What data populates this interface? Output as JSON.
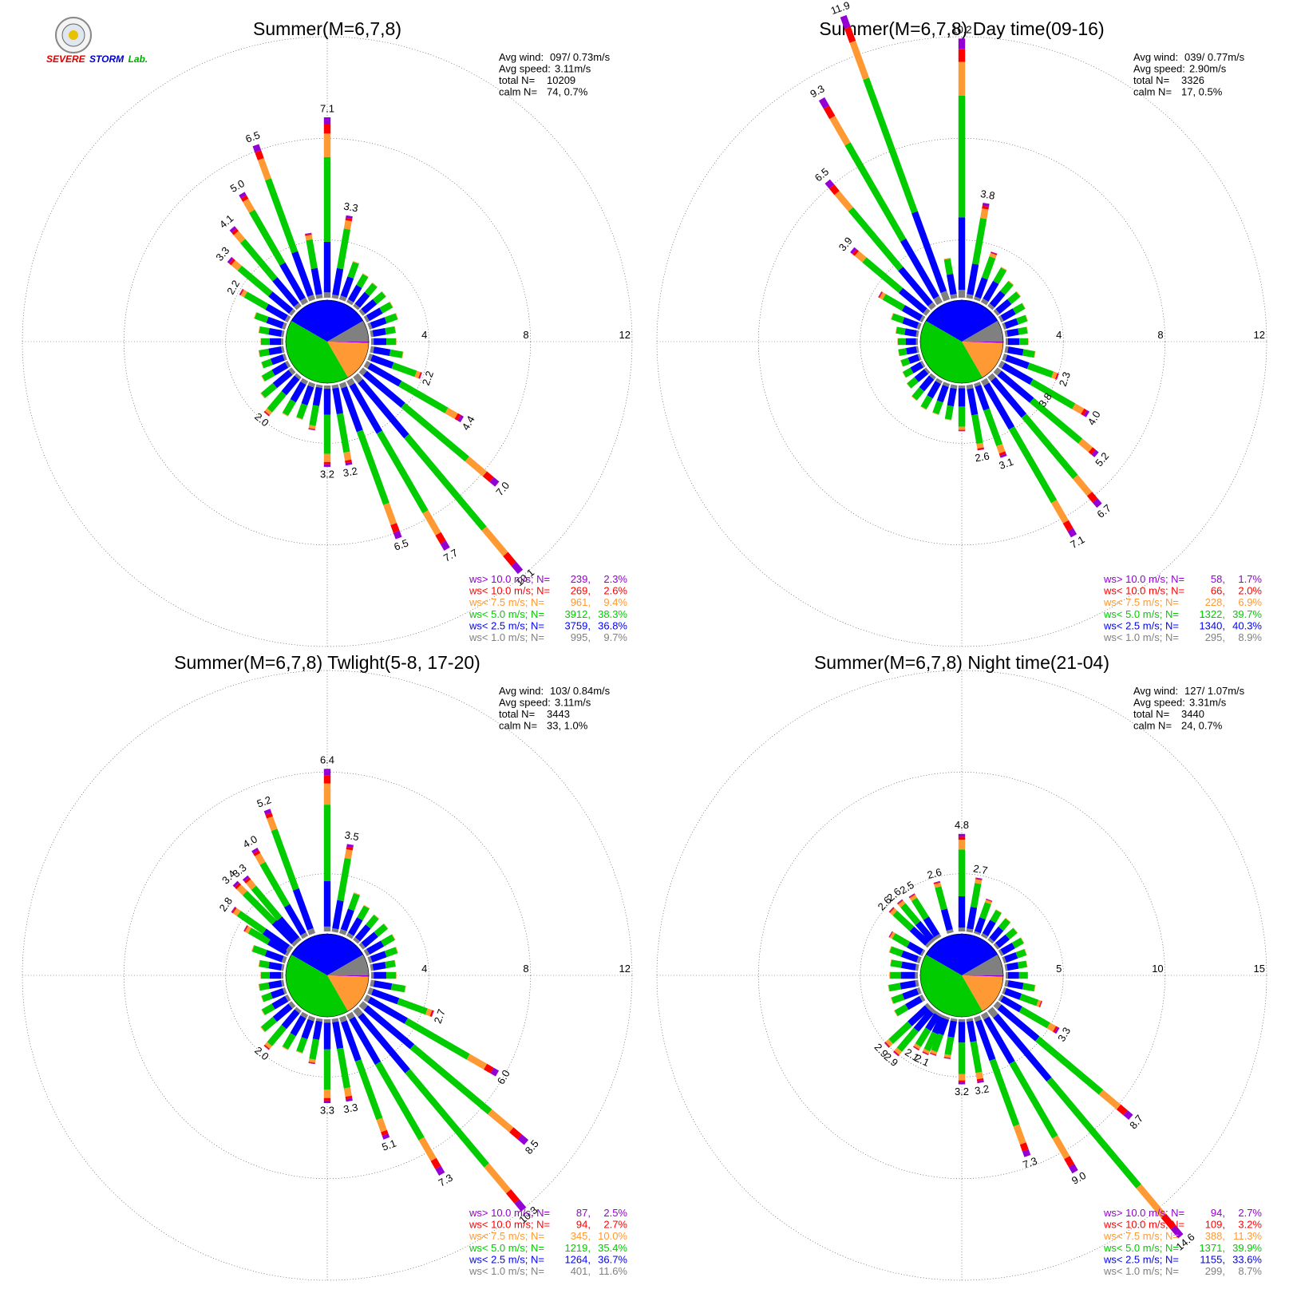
{
  "colors": {
    "gt10": "#9400d3",
    "lt10": "#ff0000",
    "lt7_5": "#ff9933",
    "lt5": "#00cc00",
    "lt2_5": "#0000ff",
    "lt1": "#808080"
  },
  "logo": {
    "icon": "severe-storm-lab-seal-icon",
    "line1": "SEVERE",
    "line2": "STORM",
    "line3": "Lab."
  },
  "chart_data": [
    {
      "type": "wind-rose",
      "title": "Summer(M=6,7,8)",
      "stats": {
        "avg_wind_label": "Avg wind:",
        "avg_wind": "097/ 0.73m/s",
        "avg_speed_label": "Avg speed:",
        "avg_speed": "3.11m/s",
        "total_label": "total N=",
        "total": "10209",
        "calm_label": "calm N=",
        "calm": "74,   0.7%"
      },
      "rmax": 12,
      "rings": [
        4,
        8,
        12
      ],
      "ring_labels": [
        "4",
        "8",
        "12"
      ],
      "bar_labels": [
        {
          "dir": 0,
          "text": "7.1"
        },
        {
          "dir": 10,
          "text": "3.3"
        },
        {
          "dir": 110,
          "text": "2.2"
        },
        {
          "dir": 120,
          "text": "4.4"
        },
        {
          "dir": 130,
          "text": "7.0"
        },
        {
          "dir": 140,
          "text": "10.1"
        },
        {
          "dir": 150,
          "text": "7.7"
        },
        {
          "dir": 160,
          "text": "6.5"
        },
        {
          "dir": 170,
          "text": "3.2"
        },
        {
          "dir": 180,
          "text": "3.2"
        },
        {
          "dir": 220,
          "text": "2.0"
        },
        {
          "dir": 300,
          "text": "2.2"
        },
        {
          "dir": 310,
          "text": "3.3"
        },
        {
          "dir": 320,
          "text": "4.1"
        },
        {
          "dir": 330,
          "text": "5.0"
        },
        {
          "dir": 340,
          "text": "6.5"
        }
      ],
      "center_pie": [
        34,
        37,
        38,
        8,
        0.7
      ],
      "legend": [
        {
          "cls": "gt10",
          "label": "ws> 10.0 m/s; N=",
          "n": "239,",
          "pct": "2.3%"
        },
        {
          "cls": "lt10",
          "label": "ws< 10.0 m/s; N=",
          "n": "269,",
          "pct": "2.6%"
        },
        {
          "cls": "lt7_5",
          "label": "ws<  7.5 m/s; N=",
          "n": "961,",
          "pct": "9.4%"
        },
        {
          "cls": "lt5",
          "label": "ws<  5.0 m/s; N=",
          "n": "3912,",
          "pct": "38.3%"
        },
        {
          "cls": "lt2_5",
          "label": "ws<  2.5 m/s; N=",
          "n": "3759,",
          "pct": "36.8%"
        },
        {
          "cls": "lt1",
          "label": "ws<  1.0 m/s; N=",
          "n": "995,",
          "pct": "9.7%"
        }
      ],
      "bars": [
        {
          "dir": 0,
          "total": 7.1
        },
        {
          "dir": 10,
          "total": 3.3
        },
        {
          "dir": 20,
          "total": 1.6
        },
        {
          "dir": 30,
          "total": 1.3
        },
        {
          "dir": 40,
          "total": 1.2
        },
        {
          "dir": 50,
          "total": 1.2
        },
        {
          "dir": 60,
          "total": 1.2
        },
        {
          "dir": 70,
          "total": 1.2
        },
        {
          "dir": 80,
          "total": 1.0
        },
        {
          "dir": 90,
          "total": 1.0
        },
        {
          "dir": 100,
          "total": 1.3
        },
        {
          "dir": 110,
          "total": 2.2
        },
        {
          "dir": 120,
          "total": 4.4
        },
        {
          "dir": 130,
          "total": 7.0
        },
        {
          "dir": 140,
          "total": 10.1
        },
        {
          "dir": 150,
          "total": 7.7
        },
        {
          "dir": 160,
          "total": 6.5
        },
        {
          "dir": 170,
          "total": 3.2
        },
        {
          "dir": 180,
          "total": 3.2
        },
        {
          "dir": 190,
          "total": 1.8
        },
        {
          "dir": 200,
          "total": 1.5
        },
        {
          "dir": 210,
          "total": 1.6
        },
        {
          "dir": 220,
          "total": 2.0
        },
        {
          "dir": 230,
          "total": 1.6
        },
        {
          "dir": 240,
          "total": 1.2
        },
        {
          "dir": 250,
          "total": 1.0
        },
        {
          "dir": 260,
          "total": 1.0
        },
        {
          "dir": 270,
          "total": 0.9
        },
        {
          "dir": 280,
          "total": 1.0
        },
        {
          "dir": 290,
          "total": 1.3
        },
        {
          "dir": 300,
          "total": 2.2
        },
        {
          "dir": 310,
          "total": 3.3
        },
        {
          "dir": 320,
          "total": 4.1
        },
        {
          "dir": 330,
          "total": 5.0
        },
        {
          "dir": 340,
          "total": 6.5
        },
        {
          "dir": 350,
          "total": 2.6
        }
      ]
    },
    {
      "type": "wind-rose",
      "title": "Summer(M=6,7,8) Day time(09-16)",
      "stats": {
        "avg_wind_label": "Avg wind:",
        "avg_wind": "039/ 0.77m/s",
        "avg_speed_label": "Avg speed:",
        "avg_speed": "2.90m/s",
        "total_label": "total N=",
        "total": "3326",
        "calm_label": "calm N=",
        "calm": "17,   0.5%"
      },
      "rmax": 12,
      "rings": [
        4,
        8,
        12
      ],
      "ring_labels": [
        "4",
        "8",
        "12"
      ],
      "bar_labels": [
        {
          "dir": 340,
          "text": "11.9"
        },
        {
          "dir": 0,
          "text": "10.2"
        },
        {
          "dir": 330,
          "text": "9.3"
        },
        {
          "dir": 320,
          "text": "6.5"
        },
        {
          "dir": 310,
          "text": "3.9"
        },
        {
          "dir": 10,
          "text": "3.8"
        },
        {
          "dir": 110,
          "text": "2.3"
        },
        {
          "dir": 120,
          "text": "4.0"
        },
        {
          "dir": 125,
          "text": "3.8"
        },
        {
          "dir": 130,
          "text": "5.2"
        },
        {
          "dir": 140,
          "text": "6.7"
        },
        {
          "dir": 150,
          "text": "7.1"
        },
        {
          "dir": 160,
          "text": "3.1"
        },
        {
          "dir": 170,
          "text": "2.6"
        }
      ],
      "center_pie": [
        38,
        41,
        40,
        7,
        0.5
      ],
      "legend": [
        {
          "cls": "gt10",
          "label": "ws> 10.0 m/s; N=",
          "n": "58,",
          "pct": "1.7%"
        },
        {
          "cls": "lt10",
          "label": "ws< 10.0 m/s; N=",
          "n": "66,",
          "pct": "2.0%"
        },
        {
          "cls": "lt7_5",
          "label": "ws<  7.5 m/s; N=",
          "n": "228,",
          "pct": "6.9%"
        },
        {
          "cls": "lt5",
          "label": "ws<  5.0 m/s; N=",
          "n": "1322,",
          "pct": "39.7%"
        },
        {
          "cls": "lt2_5",
          "label": "ws<  2.5 m/s; N=",
          "n": "1340,",
          "pct": "40.3%"
        },
        {
          "cls": "lt1",
          "label": "ws<  1.0 m/s; N=",
          "n": "295,",
          "pct": "8.9%"
        }
      ],
      "bars": [
        {
          "dir": 0,
          "total": 10.2
        },
        {
          "dir": 10,
          "total": 3.8
        },
        {
          "dir": 20,
          "total": 2.0
        },
        {
          "dir": 30,
          "total": 1.6
        },
        {
          "dir": 40,
          "total": 1.3
        },
        {
          "dir": 50,
          "total": 1.2
        },
        {
          "dir": 60,
          "total": 1.1
        },
        {
          "dir": 70,
          "total": 1.0
        },
        {
          "dir": 80,
          "total": 0.9
        },
        {
          "dir": 90,
          "total": 0.9
        },
        {
          "dir": 100,
          "total": 1.2
        },
        {
          "dir": 110,
          "total": 2.3
        },
        {
          "dir": 120,
          "total": 4.0
        },
        {
          "dir": 130,
          "total": 5.2
        },
        {
          "dir": 140,
          "total": 6.7
        },
        {
          "dir": 150,
          "total": 7.1
        },
        {
          "dir": 160,
          "total": 3.1
        },
        {
          "dir": 170,
          "total": 2.6
        },
        {
          "dir": 180,
          "total": 1.8
        },
        {
          "dir": 190,
          "total": 1.4
        },
        {
          "dir": 200,
          "total": 1.3
        },
        {
          "dir": 210,
          "total": 1.3
        },
        {
          "dir": 220,
          "total": 1.2
        },
        {
          "dir": 230,
          "total": 1.0
        },
        {
          "dir": 240,
          "total": 0.9
        },
        {
          "dir": 250,
          "total": 0.8
        },
        {
          "dir": 260,
          "total": 0.8
        },
        {
          "dir": 270,
          "total": 0.8
        },
        {
          "dir": 280,
          "total": 0.9
        },
        {
          "dir": 290,
          "total": 1.2
        },
        {
          "dir": 300,
          "total": 2.0
        },
        {
          "dir": 310,
          "total": 3.9
        },
        {
          "dir": 320,
          "total": 6.5
        },
        {
          "dir": 330,
          "total": 9.3
        },
        {
          "dir": 340,
          "total": 11.9
        },
        {
          "dir": 350,
          "total": 1.6
        }
      ]
    },
    {
      "type": "wind-rose",
      "title": "Summer(M=6,7,8) Twlight(5-8, 17-20)",
      "stats": {
        "avg_wind_label": "Avg wind:",
        "avg_wind": "103/ 0.84m/s",
        "avg_speed_label": "Avg speed:",
        "avg_speed": "3.11m/s",
        "total_label": "total N=",
        "total": "3443",
        "calm_label": "calm N=",
        "calm": "33,   1.0%"
      },
      "rmax": 12,
      "rings": [
        4,
        8,
        12
      ],
      "ring_labels": [
        "4",
        "8",
        "12"
      ],
      "bar_labels": [
        {
          "dir": 0,
          "text": "6.4"
        },
        {
          "dir": 10,
          "text": "3.5"
        },
        {
          "dir": 340,
          "text": "5.2"
        },
        {
          "dir": 330,
          "text": "4.0"
        },
        {
          "dir": 320,
          "text": "3.3"
        },
        {
          "dir": 315,
          "text": "3.4"
        },
        {
          "dir": 305,
          "text": "2.8"
        },
        {
          "dir": 110,
          "text": "2.7"
        },
        {
          "dir": 120,
          "text": "6.0"
        },
        {
          "dir": 130,
          "text": "8.5"
        },
        {
          "dir": 140,
          "text": "10.3"
        },
        {
          "dir": 150,
          "text": "7.3"
        },
        {
          "dir": 160,
          "text": "5.1"
        },
        {
          "dir": 170,
          "text": "3.3"
        },
        {
          "dir": 180,
          "text": "3.3"
        },
        {
          "dir": 220,
          "text": "2.0"
        }
      ],
      "center_pie": [
        34,
        37,
        35,
        10,
        1.0
      ],
      "legend": [
        {
          "cls": "gt10",
          "label": "ws> 10.0 m/s; N=",
          "n": "87,",
          "pct": "2.5%"
        },
        {
          "cls": "lt10",
          "label": "ws< 10.0 m/s; N=",
          "n": "94,",
          "pct": "2.7%"
        },
        {
          "cls": "lt7_5",
          "label": "ws<  7.5 m/s; N=",
          "n": "345,",
          "pct": "10.0%"
        },
        {
          "cls": "lt5",
          "label": "ws<  5.0 m/s; N=",
          "n": "1219,",
          "pct": "35.4%"
        },
        {
          "cls": "lt2_5",
          "label": "ws<  2.5 m/s; N=",
          "n": "1264,",
          "pct": "36.7%"
        },
        {
          "cls": "lt1",
          "label": "ws<  1.0 m/s; N=",
          "n": "401,",
          "pct": "11.6%"
        }
      ],
      "bars": [
        {
          "dir": 0,
          "total": 6.4
        },
        {
          "dir": 10,
          "total": 3.5
        },
        {
          "dir": 20,
          "total": 1.7
        },
        {
          "dir": 30,
          "total": 1.4
        },
        {
          "dir": 40,
          "total": 1.3
        },
        {
          "dir": 50,
          "total": 1.3
        },
        {
          "dir": 60,
          "total": 1.3
        },
        {
          "dir": 70,
          "total": 1.2
        },
        {
          "dir": 80,
          "total": 1.0
        },
        {
          "dir": 90,
          "total": 1.0
        },
        {
          "dir": 100,
          "total": 1.4
        },
        {
          "dir": 110,
          "total": 2.7
        },
        {
          "dir": 120,
          "total": 6.0
        },
        {
          "dir": 130,
          "total": 8.5
        },
        {
          "dir": 140,
          "total": 10.3
        },
        {
          "dir": 150,
          "total": 7.3
        },
        {
          "dir": 160,
          "total": 5.1
        },
        {
          "dir": 170,
          "total": 3.3
        },
        {
          "dir": 180,
          "total": 3.3
        },
        {
          "dir": 190,
          "total": 1.8
        },
        {
          "dir": 200,
          "total": 1.5
        },
        {
          "dir": 210,
          "total": 1.6
        },
        {
          "dir": 220,
          "total": 2.0
        },
        {
          "dir": 230,
          "total": 1.6
        },
        {
          "dir": 240,
          "total": 1.2
        },
        {
          "dir": 250,
          "total": 1.0
        },
        {
          "dir": 260,
          "total": 1.0
        },
        {
          "dir": 270,
          "total": 0.9
        },
        {
          "dir": 280,
          "total": 1.0
        },
        {
          "dir": 290,
          "total": 1.4
        },
        {
          "dir": 300,
          "total": 2.0
        },
        {
          "dir": 305,
          "total": 2.8
        },
        {
          "dir": 315,
          "total": 3.4
        },
        {
          "dir": 320,
          "total": 3.3
        },
        {
          "dir": 330,
          "total": 4.0
        },
        {
          "dir": 340,
          "total": 5.2
        }
      ]
    },
    {
      "type": "wind-rose",
      "title": "Summer(M=6,7,8) Night time(21-04)",
      "stats": {
        "avg_wind_label": "Avg wind:",
        "avg_wind": "127/ 1.07m/s",
        "avg_speed_label": "Avg speed:",
        "avg_speed": "3.31m/s",
        "total_label": "total N=",
        "total": "3440",
        "calm_label": "calm N=",
        "calm": "24,   0.7%"
      },
      "rmax": 15,
      "rings": [
        5,
        10,
        15
      ],
      "ring_labels": [
        "5",
        "10",
        "15"
      ],
      "bar_labels": [
        {
          "dir": 0,
          "text": "4.8"
        },
        {
          "dir": 10,
          "text": "2.7"
        },
        {
          "dir": 345,
          "text": "2.6"
        },
        {
          "dir": 328,
          "text": "2.5"
        },
        {
          "dir": 320,
          "text": "2.6"
        },
        {
          "dir": 313,
          "text": "2.6"
        },
        {
          "dir": 120,
          "text": "3.3"
        },
        {
          "dir": 130,
          "text": "8.7"
        },
        {
          "dir": 140,
          "text": "14.6"
        },
        {
          "dir": 150,
          "text": "9.0"
        },
        {
          "dir": 160,
          "text": "7.3"
        },
        {
          "dir": 170,
          "text": "3.2"
        },
        {
          "dir": 180,
          "text": "3.2"
        },
        {
          "dir": 205,
          "text": "2.1"
        },
        {
          "dir": 212,
          "text": "2.1"
        },
        {
          "dir": 220,
          "text": "2.9"
        },
        {
          "dir": 227,
          "text": "2.9"
        }
      ],
      "center_pie": [
        32,
        34,
        40,
        11,
        0.7
      ],
      "legend": [
        {
          "cls": "gt10",
          "label": "ws> 10.0 m/s; N=",
          "n": "94,",
          "pct": "2.7%"
        },
        {
          "cls": "lt10",
          "label": "ws< 10.0 m/s; N=",
          "n": "109,",
          "pct": "3.2%"
        },
        {
          "cls": "lt7_5",
          "label": "ws<  7.5 m/s; N=",
          "n": "388,",
          "pct": "11.3%"
        },
        {
          "cls": "lt5",
          "label": "ws<  5.0 m/s; N=",
          "n": "1371,",
          "pct": "39.9%"
        },
        {
          "cls": "lt2_5",
          "label": "ws<  2.5 m/s; N=",
          "n": "1155,",
          "pct": "33.6%"
        },
        {
          "cls": "lt1",
          "label": "ws<  1.0 m/s; N=",
          "n": "299,",
          "pct": "8.7%"
        }
      ],
      "bars": [
        {
          "dir": 0,
          "total": 4.8
        },
        {
          "dir": 10,
          "total": 2.7
        },
        {
          "dir": 20,
          "total": 1.8
        },
        {
          "dir": 30,
          "total": 1.5
        },
        {
          "dir": 40,
          "total": 1.4
        },
        {
          "dir": 50,
          "total": 1.3
        },
        {
          "dir": 60,
          "total": 1.3
        },
        {
          "dir": 70,
          "total": 1.2
        },
        {
          "dir": 80,
          "total": 1.1
        },
        {
          "dir": 90,
          "total": 1.1
        },
        {
          "dir": 100,
          "total": 1.5
        },
        {
          "dir": 110,
          "total": 2.0
        },
        {
          "dir": 120,
          "total": 3.3
        },
        {
          "dir": 130,
          "total": 8.7
        },
        {
          "dir": 140,
          "total": 14.6
        },
        {
          "dir": 150,
          "total": 9.0
        },
        {
          "dir": 160,
          "total": 7.3
        },
        {
          "dir": 170,
          "total": 3.2
        },
        {
          "dir": 180,
          "total": 3.2
        },
        {
          "dir": 190,
          "total": 2.0
        },
        {
          "dir": 200,
          "total": 2.0
        },
        {
          "dir": 205,
          "total": 2.1
        },
        {
          "dir": 212,
          "total": 2.1
        },
        {
          "dir": 220,
          "total": 2.9
        },
        {
          "dir": 227,
          "total": 2.9
        },
        {
          "dir": 240,
          "total": 1.6
        },
        {
          "dir": 250,
          "total": 1.5
        },
        {
          "dir": 260,
          "total": 1.5
        },
        {
          "dir": 270,
          "total": 1.4
        },
        {
          "dir": 280,
          "total": 1.4
        },
        {
          "dir": 290,
          "total": 1.6
        },
        {
          "dir": 300,
          "total": 1.9
        },
        {
          "dir": 313,
          "total": 2.6
        },
        {
          "dir": 320,
          "total": 2.6
        },
        {
          "dir": 328,
          "total": 2.5
        },
        {
          "dir": 345,
          "total": 2.6
        }
      ]
    }
  ]
}
